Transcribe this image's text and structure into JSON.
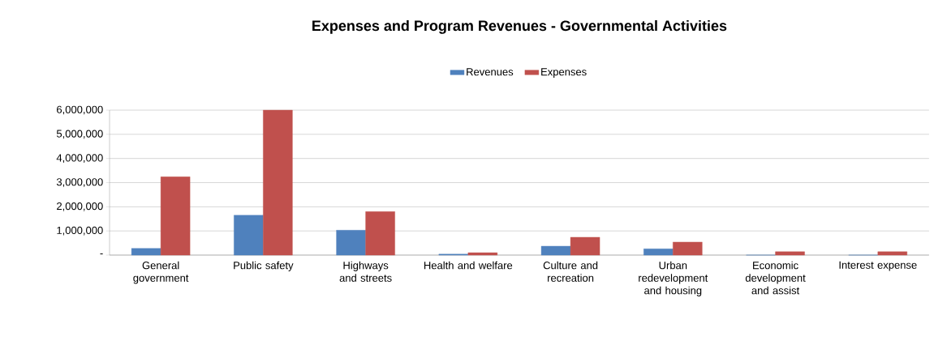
{
  "chart_data": {
    "type": "bar",
    "title": "Expenses and Program Revenues - Governmental Activities",
    "categories": [
      "General government",
      "Public safety",
      "Highways and streets",
      "Health and welfare",
      "Culture and recreation",
      "Urban redevelopment and housing",
      "Economic development and assist",
      "Interest expense"
    ],
    "series": [
      {
        "name": "Revenues",
        "color": "#4f81bd",
        "values": [
          280000,
          1650000,
          1030000,
          40000,
          370000,
          260000,
          0,
          0
        ]
      },
      {
        "name": "Expenses",
        "color": "#c0504d",
        "values": [
          3240000,
          6000000,
          1800000,
          100000,
          740000,
          540000,
          140000,
          140000
        ]
      }
    ],
    "ylim": [
      0,
      6000000
    ],
    "yticks": [
      {
        "value": 0,
        "label": "-"
      },
      {
        "value": 1000000,
        "label": "1,000,000"
      },
      {
        "value": 2000000,
        "label": "2,000,000"
      },
      {
        "value": 3000000,
        "label": "3,000,000"
      },
      {
        "value": 4000000,
        "label": "4,000,000"
      },
      {
        "value": 5000000,
        "label": "5,000,000"
      },
      {
        "value": 6000000,
        "label": "6,000,000"
      }
    ],
    "grid": "y",
    "legend": "top"
  }
}
